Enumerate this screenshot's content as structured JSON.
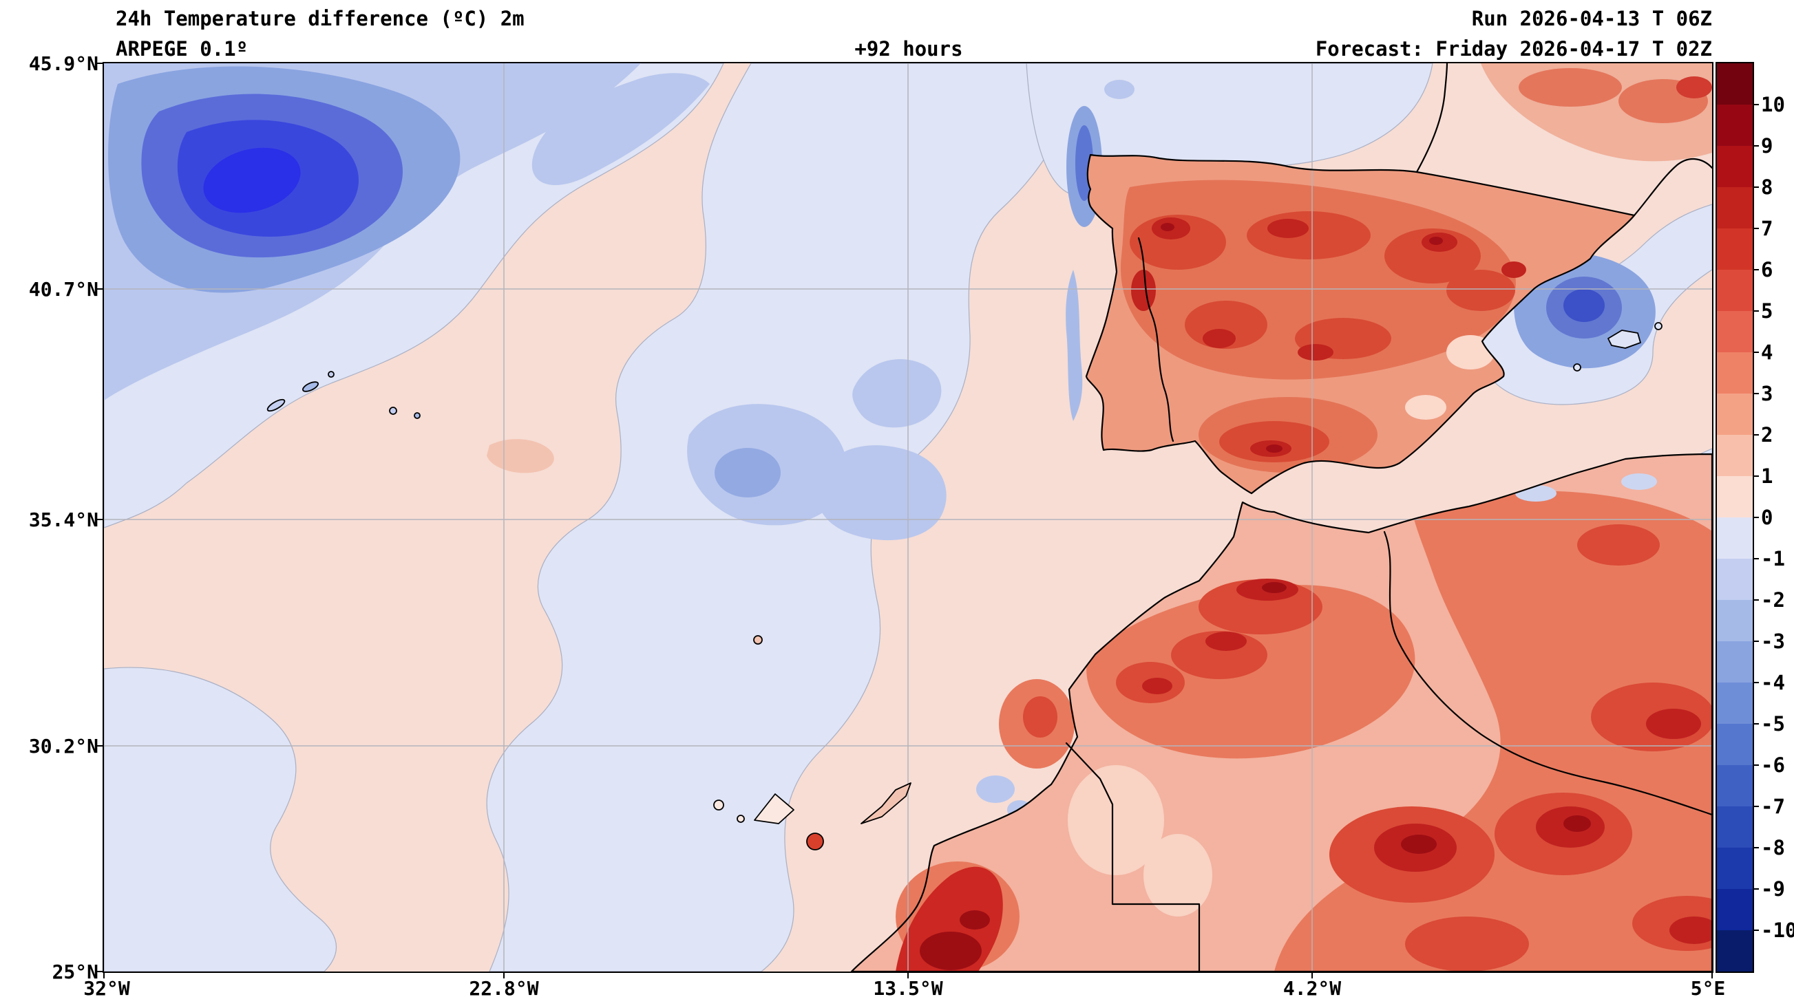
{
  "header": {
    "title": "24h Temperature difference (ºC) 2m",
    "model": "ARPEGE 0.1º",
    "lead_time": "+92 hours",
    "run_label": "Run 2026-04-13 T 06Z",
    "forecast_label": "Forecast: Friday 2026-04-17 T 02Z"
  },
  "axes": {
    "lat_ticks": [
      "45.9°N",
      "40.7°N",
      "35.4°N",
      "30.2°N",
      "25°N"
    ],
    "lon_ticks": [
      "32°W",
      "22.8°W",
      "13.5°W",
      "4.2°W",
      "5°E"
    ]
  },
  "colorbar": {
    "unit": "°C",
    "tick_labels": [
      "10",
      "9",
      "8",
      "7",
      "6",
      "5",
      "4",
      "3",
      "2",
      "1",
      "0",
      "-1",
      "-2",
      "-3",
      "-4",
      "-5",
      "-6",
      "-7",
      "-8",
      "-9",
      "-10"
    ],
    "segment_colors_top_to_bottom": [
      "#73030f",
      "#960713",
      "#af1117",
      "#c2231c",
      "#d23527",
      "#de4a3a",
      "#e76450",
      "#ee8266",
      "#f4a286",
      "#f8c0ab",
      "#fbddd1",
      "#dfe3f6",
      "#c3cef0",
      "#a6bae8",
      "#8aa4e0",
      "#6f8ed8",
      "#5577ce",
      "#3f61c4",
      "#2c4cb8",
      "#1d3aac",
      "#10289c",
      "#081c6b"
    ]
  },
  "chart_data": {
    "type": "heatmap",
    "title": "24h Temperature difference (ºC) 2m",
    "model": "ARPEGE 0.1º",
    "run": "2026-04-13 T 06Z",
    "forecast_valid": "Friday 2026-04-17 T 02Z",
    "lead_hours": 92,
    "variable": "24-hour 2m temperature difference (°C)",
    "extent": {
      "lon_min": -32,
      "lon_max": 5,
      "lat_min": 25,
      "lat_max": 45.9
    },
    "x_ticks": [
      "32°W",
      "22.8°W",
      "13.5°W",
      "4.2°W",
      "5°E"
    ],
    "y_ticks": [
      "45.9°N",
      "40.7°N",
      "35.4°N",
      "30.2°N",
      "25°N"
    ],
    "colorbar_range": [
      -10,
      10
    ],
    "colorbar_step": 1,
    "grid": true,
    "legend_position": "right",
    "regional_summary": [
      "Strong cooling (-5 to -8°C) core in the far northwest Atlantic",
      "Moderate cooling (-2 to -5°C) band over the northeast Atlantic toward the Galician coast",
      "Cooling pocket (-3 to -5°C) over northeast Spain and the nearby Mediterranean",
      "Widespread warming (+2 to +8°C) over the Iberian Peninsula, strongest over the interior",
      "Strong warming (+3 to +10°C) over Morocco, the Atlas mountains and the Algerian interior",
      "Intense warming (+8 to +10°C) spot on the Atlantic Saharan coast near the bottom of the map",
      "Weak warming (0 to +2°C) over most of the open Atlantic",
      "Weak cooling (0 to -2°C) in central-Atlantic patches and near the Canary Islands"
    ]
  }
}
